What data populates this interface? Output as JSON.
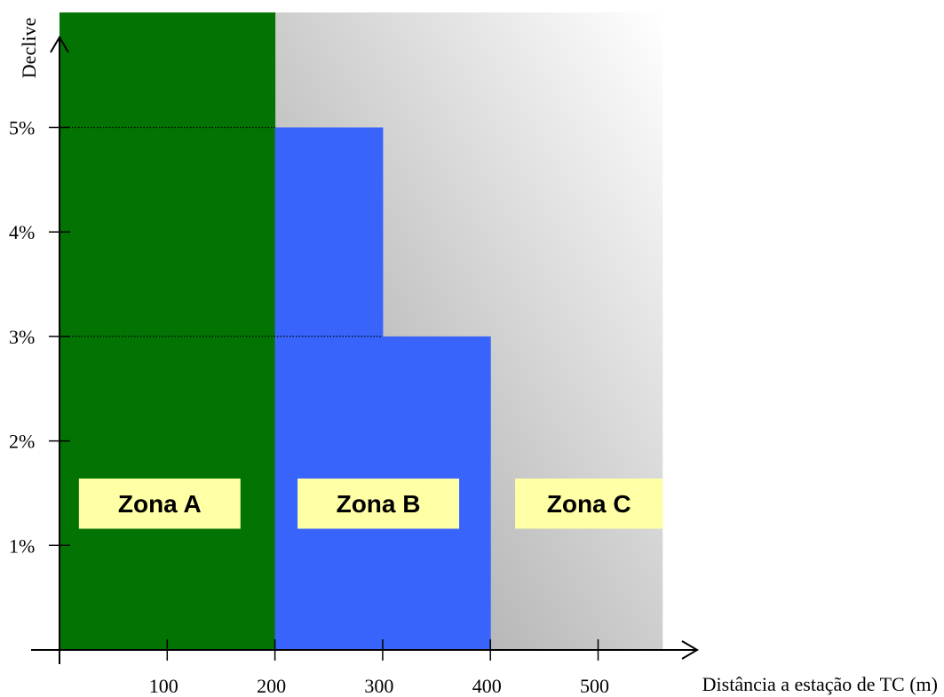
{
  "chart_data": {
    "type": "area",
    "title": "",
    "xlabel": "Distância a estação de TC (m)",
    "ylabel": "Declive",
    "xlim": [
      0,
      580
    ],
    "ylim": [
      0,
      6.1
    ],
    "x_ticks": [
      {
        "value": 100,
        "label": "100"
      },
      {
        "value": 200,
        "label": "200"
      },
      {
        "value": 300,
        "label": "300"
      },
      {
        "value": 400,
        "label": "400"
      },
      {
        "value": 500,
        "label": "500"
      }
    ],
    "y_ticks": [
      {
        "value": 1,
        "label": "1%"
      },
      {
        "value": 2,
        "label": "2%"
      },
      {
        "value": 3,
        "label": "3%"
      },
      {
        "value": 4,
        "label": "4%"
      },
      {
        "value": 5,
        "label": "5%"
      }
    ],
    "reference_lines": [
      {
        "y": 5,
        "x_from": 0,
        "x_to": 200,
        "style": "dotted"
      },
      {
        "y": 3,
        "x_from": 0,
        "x_to": 300,
        "style": "dotted"
      }
    ],
    "zones": [
      {
        "name": "Zona A",
        "color": "#037403",
        "steps": [
          {
            "x0": 0,
            "x1": 200,
            "y": 6.1
          }
        ],
        "label_x": [
          18,
          168
        ],
        "label_y": [
          1.16,
          1.64
        ]
      },
      {
        "name": "Zona B",
        "color": "#3864fc",
        "steps": [
          {
            "x0": 200,
            "x1": 300,
            "y": 5
          },
          {
            "x0": 300,
            "x1": 400,
            "y": 3
          }
        ],
        "label_x": [
          221,
          371
        ],
        "label_y": [
          1.16,
          1.64
        ]
      },
      {
        "name": "Zona C",
        "color_light": "#ffffff",
        "color_dark": "#9c9c9c",
        "steps": [
          {
            "x0": 200,
            "x1": 560,
            "y": 6.1
          }
        ],
        "label_x": [
          423,
          560
        ],
        "label_y": [
          1.16,
          1.64
        ]
      }
    ],
    "zone_label_color": "#ffffa5",
    "legend": "none",
    "grid": false
  }
}
